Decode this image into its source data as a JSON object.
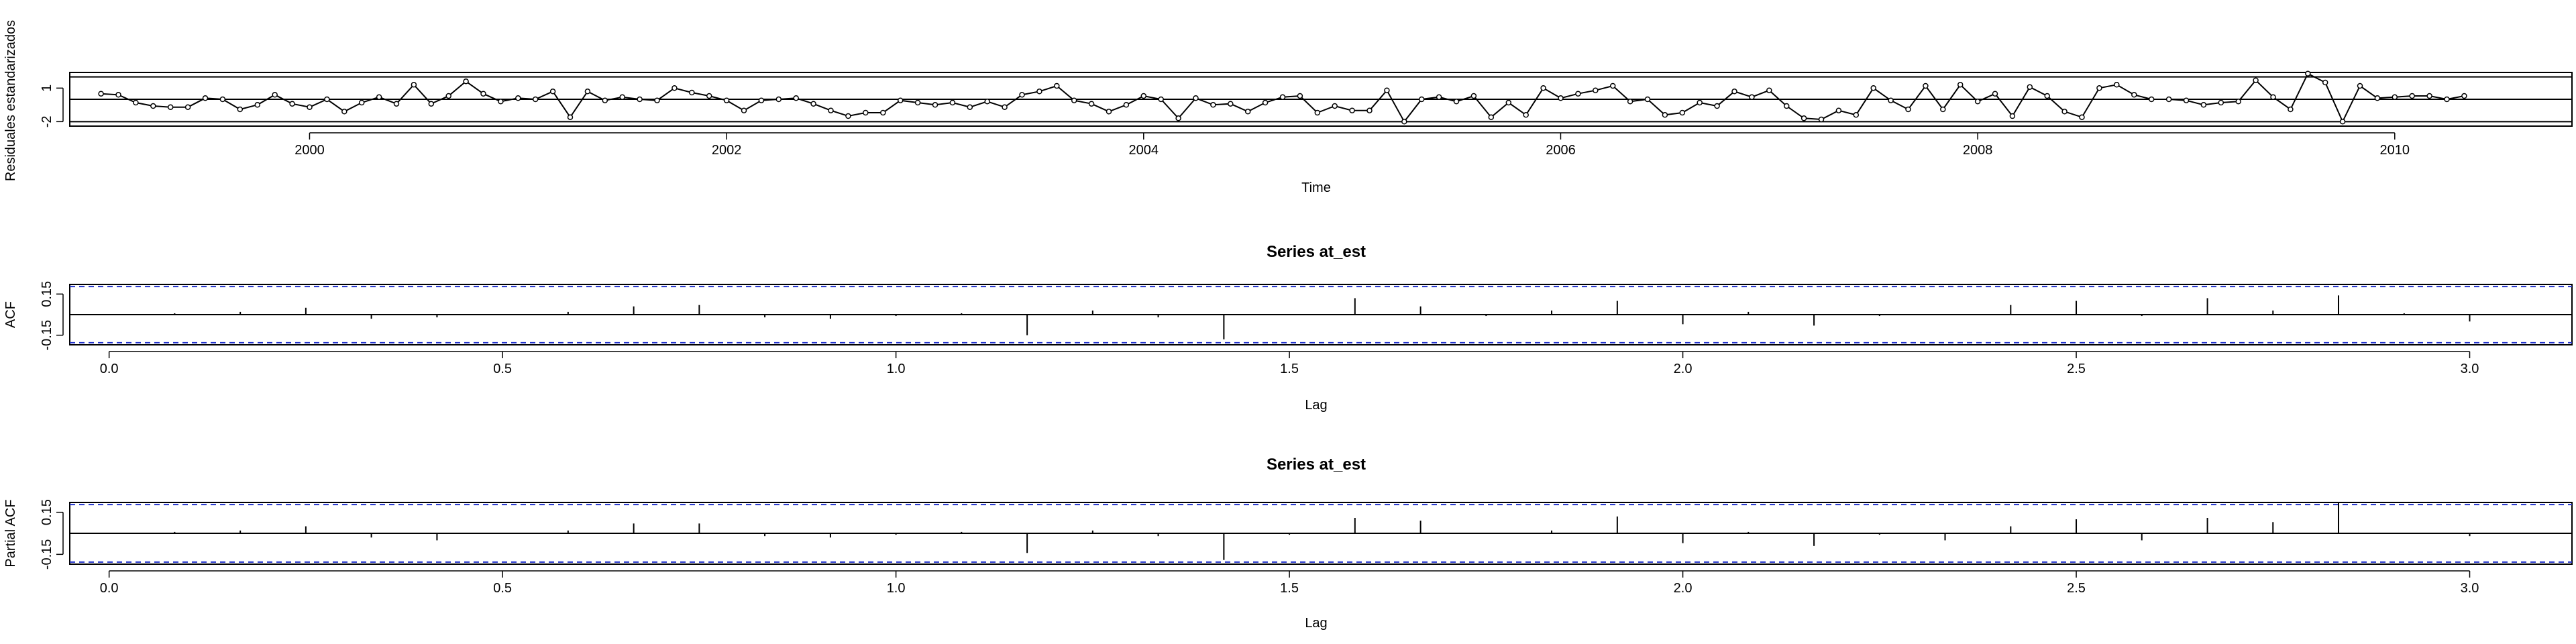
{
  "chart_data": [
    {
      "type": "line",
      "panel": "residuals",
      "title": "",
      "xlabel": "Time",
      "ylabel": "Residuales estandarizados",
      "xlim": [
        1998.85,
        2010.85
      ],
      "ylim": [
        -2.4,
        2.4
      ],
      "x_ticks": [
        2000,
        2002,
        2004,
        2006,
        2008,
        2010
      ],
      "x_tick_labels": [
        "2000",
        "2002",
        "2004",
        "2006",
        "2008",
        "2010"
      ],
      "y_ticks": [
        1,
        -2
      ],
      "y_tick_labels": [
        "1",
        "-2"
      ],
      "reference_lines": [
        2,
        0,
        -2
      ],
      "start": 1999.0,
      "frequency": 12,
      "values": [
        0.5,
        0.4,
        -0.3,
        -0.6,
        -0.7,
        -0.7,
        0.1,
        0.0,
        -0.9,
        -0.5,
        0.4,
        -0.4,
        -0.7,
        0.0,
        -1.1,
        -0.3,
        0.2,
        -0.4,
        1.3,
        -0.4,
        0.3,
        1.6,
        0.5,
        -0.2,
        0.1,
        0.0,
        0.7,
        -1.6,
        0.7,
        -0.1,
        0.2,
        0.0,
        -0.1,
        1.0,
        0.6,
        0.3,
        -0.1,
        -1.0,
        -0.1,
        0.0,
        0.1,
        -0.4,
        -1.0,
        -1.5,
        -1.2,
        -1.2,
        -0.1,
        -0.3,
        -0.5,
        -0.3,
        -0.7,
        -0.2,
        -0.7,
        0.4,
        0.7,
        1.2,
        -0.1,
        -0.4,
        -1.1,
        -0.5,
        0.3,
        0.0,
        -1.7,
        0.1,
        -0.5,
        -0.4,
        -1.1,
        -0.3,
        0.2,
        0.3,
        -1.2,
        -0.6,
        -1.0,
        -1.0,
        0.8,
        -2.0,
        0.0,
        0.2,
        -0.2,
        0.3,
        -1.6,
        -0.3,
        -1.4,
        1.0,
        0.1,
        0.5,
        0.8,
        1.2,
        -0.2,
        0.0,
        -1.4,
        -1.2,
        -0.3,
        -0.6,
        0.7,
        0.2,
        0.8,
        -0.6,
        -1.7,
        -1.8,
        -1.0,
        -1.4,
        1.0,
        -0.1,
        -0.9,
        1.2,
        -0.9,
        1.3,
        -0.2,
        0.5,
        -1.5,
        1.1,
        0.3,
        -1.1,
        -1.6,
        1.0,
        1.3,
        0.4,
        0.0,
        0.0,
        -0.1,
        -0.5,
        -0.3,
        -0.2,
        1.7,
        0.2,
        -0.9,
        2.3,
        1.5,
        -2.0,
        1.2,
        0.1,
        0.2,
        0.3,
        0.3,
        0.0,
        0.3
      ]
    },
    {
      "type": "bar",
      "panel": "acf",
      "title": "Series at_est",
      "xlabel": "Lag",
      "ylabel": "ACF",
      "xlim": [
        -0.05,
        3.13
      ],
      "ylim": [
        -0.22,
        0.22
      ],
      "x_ticks": [
        0.0,
        0.5,
        1.0,
        1.5,
        2.0,
        2.5,
        3.0
      ],
      "x_tick_labels": [
        "0.0",
        "0.5",
        "1.0",
        "1.5",
        "2.0",
        "2.5",
        "3.0"
      ],
      "y_ticks": [
        0.15,
        -0.15
      ],
      "y_tick_labels": [
        "0.15",
        "-0.15"
      ],
      "confidence_bounds": [
        0.205,
        -0.205
      ],
      "lags": [
        0.0833,
        0.1667,
        0.25,
        0.3333,
        0.4167,
        0.5,
        0.5833,
        0.6667,
        0.75,
        0.8333,
        0.9167,
        1.0,
        1.0833,
        1.1667,
        1.25,
        1.3333,
        1.4167,
        1.5,
        1.5833,
        1.6667,
        1.75,
        1.8333,
        1.9167,
        2.0,
        2.0833,
        2.1667,
        2.25,
        2.3333,
        2.4167,
        2.5,
        2.5833,
        2.6667,
        2.75,
        2.8333,
        2.9167,
        3.0
      ],
      "values": [
        0.01,
        0.02,
        0.05,
        -0.03,
        -0.02,
        0.0,
        0.02,
        0.06,
        0.07,
        -0.02,
        -0.03,
        -0.01,
        0.01,
        -0.15,
        0.03,
        -0.02,
        -0.18,
        0.0,
        0.12,
        0.06,
        -0.01,
        0.03,
        0.1,
        -0.07,
        0.02,
        -0.08,
        -0.01,
        0.0,
        0.07,
        0.1,
        -0.01,
        0.12,
        0.03,
        0.14,
        0.01,
        -0.05
      ]
    },
    {
      "type": "bar",
      "panel": "pacf",
      "title": "Series  at_est",
      "xlabel": "Lag",
      "ylabel": "Partial ACF",
      "xlim": [
        -0.05,
        3.13
      ],
      "ylim": [
        -0.22,
        0.22
      ],
      "x_ticks": [
        0.0,
        0.5,
        1.0,
        1.5,
        2.0,
        2.5,
        3.0
      ],
      "x_tick_labels": [
        "0.0",
        "0.5",
        "1.0",
        "1.5",
        "2.0",
        "2.5",
        "3.0"
      ],
      "y_ticks": [
        0.15,
        -0.15
      ],
      "y_tick_labels": [
        "0.15",
        "-0.15"
      ],
      "confidence_bounds": [
        0.205,
        -0.205
      ],
      "lags": [
        0.0833,
        0.1667,
        0.25,
        0.3333,
        0.4167,
        0.5,
        0.5833,
        0.6667,
        0.75,
        0.8333,
        0.9167,
        1.0,
        1.0833,
        1.1667,
        1.25,
        1.3333,
        1.4167,
        1.5,
        1.5833,
        1.6667,
        1.75,
        1.8333,
        1.9167,
        2.0,
        2.0833,
        2.1667,
        2.25,
        2.3333,
        2.4167,
        2.5,
        2.5833,
        2.6667,
        2.75,
        2.8333,
        2.9167,
        3.0
      ],
      "values": [
        0.01,
        0.02,
        0.05,
        -0.03,
        -0.05,
        0.0,
        0.02,
        0.07,
        0.07,
        -0.02,
        -0.03,
        -0.01,
        0.01,
        -0.14,
        0.02,
        -0.02,
        -0.19,
        -0.01,
        0.11,
        0.09,
        0.0,
        0.02,
        0.12,
        -0.07,
        0.01,
        -0.09,
        -0.01,
        -0.05,
        0.05,
        0.1,
        -0.05,
        0.11,
        0.08,
        0.22,
        0.0,
        -0.02
      ]
    }
  ]
}
